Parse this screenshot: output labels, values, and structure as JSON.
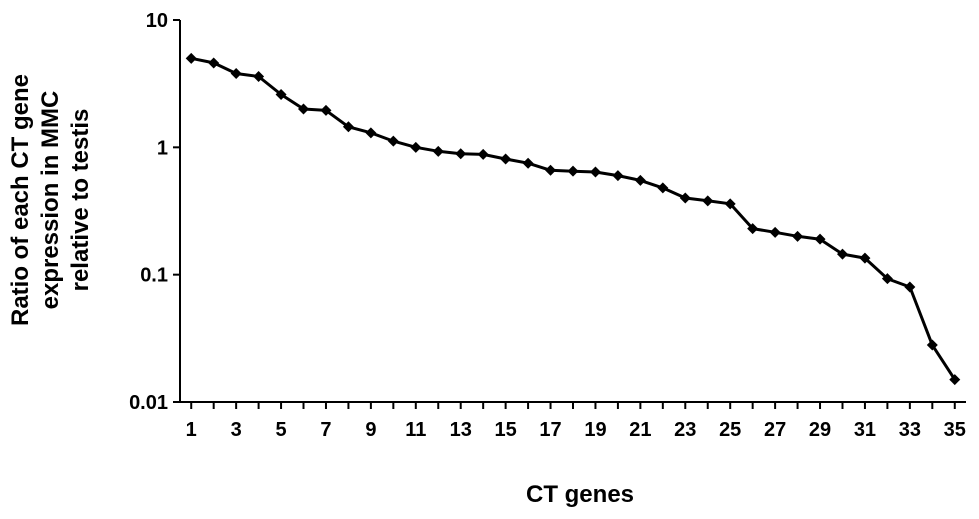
{
  "chart_data": {
    "type": "line",
    "title": "",
    "xlabel": "CT genes",
    "ylabel": [
      "Ratio of each CT gene",
      "expression in MMC",
      "relative to testis"
    ],
    "y_scale": "log",
    "ylim": [
      0.01,
      10
    ],
    "y_ticks": [
      {
        "value": 10,
        "label": "10"
      },
      {
        "value": 1,
        "label": "1"
      },
      {
        "value": 0.1,
        "label": "0.1"
      },
      {
        "value": 0.01,
        "label": "0.01"
      }
    ],
    "xlim": [
      0.5,
      35.5
    ],
    "x_ticks": [
      1,
      3,
      5,
      7,
      9,
      11,
      13,
      15,
      17,
      19,
      21,
      23,
      25,
      27,
      29,
      31,
      33,
      35
    ],
    "grid": false,
    "legend": "none",
    "color": "#000000",
    "series": [
      {
        "x": [
          1,
          2,
          3,
          4,
          5,
          6,
          7,
          8,
          9,
          10,
          11,
          12,
          13,
          14,
          15,
          16,
          17,
          18,
          19,
          20,
          21,
          22,
          23,
          24,
          25,
          26,
          27,
          28,
          29,
          30,
          31,
          32,
          33,
          34,
          35
        ],
        "values": [
          5.0,
          4.6,
          3.8,
          3.6,
          2.6,
          2.0,
          1.95,
          1.45,
          1.3,
          1.12,
          1.0,
          0.93,
          0.89,
          0.88,
          0.81,
          0.75,
          0.66,
          0.65,
          0.64,
          0.6,
          0.55,
          0.48,
          0.4,
          0.38,
          0.36,
          0.23,
          0.215,
          0.2,
          0.19,
          0.145,
          0.135,
          0.093,
          0.08,
          0.028,
          0.015
        ]
      }
    ]
  }
}
